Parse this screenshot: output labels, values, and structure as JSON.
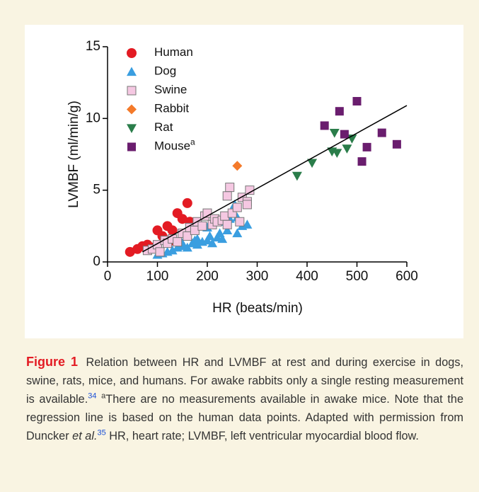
{
  "chart_data": {
    "type": "scatter",
    "ylabel": "LVMBF (ml/min/g)",
    "xlabel": "HR (beats/min)",
    "xlim": [
      0,
      600
    ],
    "xticks": [
      0,
      100,
      200,
      300,
      400,
      500,
      600
    ],
    "ylim": [
      0,
      15
    ],
    "yticks": [
      0,
      5,
      10,
      15
    ],
    "series": [
      {
        "name": "Human",
        "marker": "circle",
        "color": "#e31b23",
        "x": [
          45,
          60,
          70,
          80,
          90,
          100,
          110,
          120,
          130,
          130,
          140,
          150,
          160,
          165,
          170
        ],
        "values": [
          0.7,
          0.9,
          1.1,
          1.2,
          1.0,
          2.2,
          1.8,
          2.5,
          2.2,
          1.5,
          3.4,
          3.0,
          4.1,
          2.8,
          2.6
        ]
      },
      {
        "name": "Dog",
        "marker": "triangle-up",
        "color": "#3a9ee0",
        "x": [
          100,
          110,
          120,
          130,
          140,
          150,
          160,
          170,
          175,
          180,
          190,
          200,
          205,
          210,
          220,
          225,
          230,
          240,
          245,
          250,
          255,
          260,
          270,
          280,
          150,
          180,
          200,
          230,
          260
        ],
        "values": [
          0.5,
          0.6,
          0.7,
          0.8,
          1.0,
          1.1,
          1.0,
          1.3,
          1.5,
          1.2,
          1.4,
          1.5,
          1.8,
          1.3,
          1.7,
          2.0,
          1.6,
          2.2,
          3.0,
          3.5,
          4.0,
          2.0,
          2.5,
          2.6,
          1.3,
          1.6,
          2.4,
          2.8,
          3.1
        ]
      },
      {
        "name": "Swine",
        "marker": "square",
        "color": "#f5c8e2",
        "x": [
          80,
          90,
          100,
          105,
          115,
          120,
          130,
          140,
          150,
          160,
          165,
          175,
          180,
          190,
          195,
          200,
          210,
          215,
          220,
          230,
          235,
          240,
          245,
          250,
          260,
          265,
          270,
          280,
          285,
          280,
          240
        ],
        "values": [
          0.8,
          0.9,
          1.2,
          0.7,
          1.5,
          1.3,
          1.6,
          1.4,
          2.0,
          1.8,
          2.4,
          2.2,
          2.8,
          2.5,
          3.2,
          3.4,
          2.6,
          3.0,
          2.8,
          2.9,
          3.2,
          2.6,
          5.2,
          3.4,
          3.8,
          2.8,
          4.5,
          4.2,
          5.0,
          4.0,
          4.6
        ]
      },
      {
        "name": "Rabbit",
        "marker": "diamond",
        "color": "#f47a2a",
        "x": [
          260
        ],
        "values": [
          6.7
        ]
      },
      {
        "name": "Rat",
        "marker": "triangle-down",
        "color": "#2a7d4a",
        "x": [
          380,
          410,
          450,
          455,
          460,
          480,
          490
        ],
        "values": [
          6.0,
          6.9,
          7.7,
          9.0,
          7.6,
          7.9,
          8.6
        ]
      },
      {
        "name": "Mouse",
        "name_superscript": "a",
        "marker": "square",
        "color": "#6a1d6e",
        "x": [
          435,
          465,
          475,
          500,
          510,
          520,
          550,
          580
        ],
        "values": [
          9.5,
          10.5,
          8.9,
          11.2,
          7.0,
          8.0,
          9.0,
          8.2
        ]
      }
    ],
    "regression_line": {
      "x": [
        70,
        600
      ],
      "values": [
        0.7,
        10.9
      ],
      "color": "#000000"
    }
  },
  "caption": {
    "label": "Figure 1",
    "text_1": "Relation between HR and LVMBF at rest and during exercise in dogs, swine, rats, mice, and humans. For awake rabbits only a single resting measurement is available.",
    "ref_1": "34",
    "note_marker": "a",
    "text_2": "There are no measurements available in awake mice. Note that the regression line is based on the human data points. Adapted with permission from Duncker",
    "italic": "et al.",
    "ref_2": "35",
    "text_3": "HR, heart rate; LVMBF, left ventricular myocardial blood flow."
  }
}
